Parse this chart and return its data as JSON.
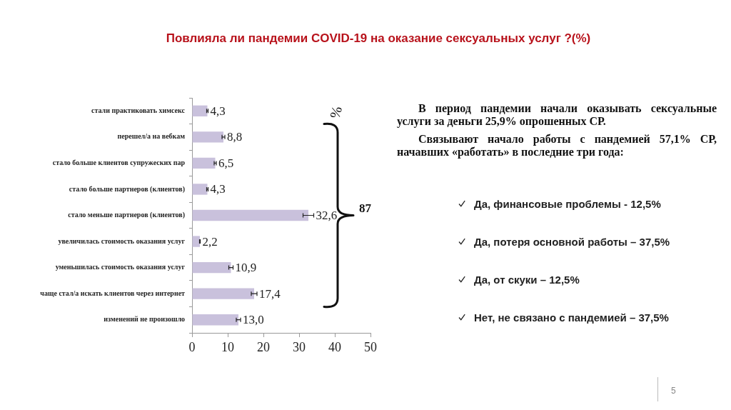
{
  "chart_data": {
    "type": "bar",
    "orientation": "horizontal",
    "title": "Повлияла ли пандемии COVID-19 на оказание сексуальных услуг ?(%)",
    "categories": [
      "стали практиковать химсекс",
      "перешел/а на вебкам",
      "стало больше клиентов супружеских пар",
      "стало больше партнеров (клиентов)",
      "стало меньше партнеров (клиентов)",
      "увеличилась стоимость оказания услуг",
      "уменьшилась стоимость оказания услуг",
      "чаще стал/а искать клиентов через интернет",
      "изменений не произошло"
    ],
    "values": [
      4.3,
      8.8,
      6.5,
      4.3,
      32.6,
      2.2,
      10.9,
      17.4,
      13.0
    ],
    "errors": [
      0.2,
      0.4,
      0.3,
      0.2,
      1.5,
      0.1,
      0.6,
      0.8,
      0.6
    ],
    "value_labels": [
      "4,3",
      "8,8",
      "6,5",
      "4,3",
      "32,6",
      "2,2",
      "10,9",
      "17,4",
      "13,0"
    ],
    "color": "#c9c1dc",
    "xlim": [
      0,
      50
    ],
    "xticks": [
      0,
      10,
      20,
      30,
      40,
      50
    ],
    "annotations": [
      "%",
      "87",
      "В период пандемии начали оказывать сексуальные услуги за деньги 25,9% опрошенных СР.",
      "Связывают начало работы с пандемией 57,1% СР, начавших «работать» в последние три года:",
      "Да, финансовые проблемы - 12,5%",
      "Да, потеря основной работы – 37,5%",
      "Да, от скуки – 12,5%",
      "Нет, не связано с пандемией – 37,5%",
      "5"
    ]
  }
}
